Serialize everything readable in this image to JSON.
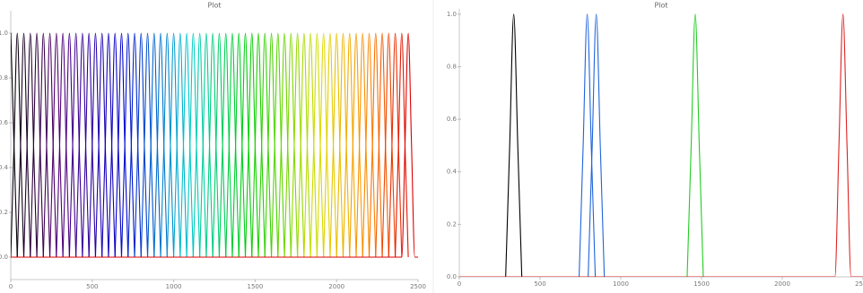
{
  "chart_data": [
    {
      "type": "line",
      "title": "Plot",
      "xlim": [
        0,
        2500
      ],
      "ylim": [
        -0.1,
        1.1
      ],
      "xticks": [
        0,
        500,
        1000,
        1500,
        2000,
        2500
      ],
      "yticks": [
        {
          "value": 0,
          "label": "0.0"
        },
        0.2,
        0.4,
        0.6,
        0.8,
        {
          "value": 1,
          "label": "1.0"
        }
      ],
      "series": [
        {
          "color": "#000000",
          "x": [
            0,
            20,
            40
          ],
          "values": [
            1,
            0.5,
            0
          ]
        },
        {
          "color": "#0b000f",
          "x": [
            0,
            20,
            40,
            60,
            80
          ],
          "values": [
            0,
            0.5,
            1,
            0.5,
            0
          ]
        },
        {
          "color": "#17001f",
          "x": [
            40,
            60,
            80,
            100,
            120
          ],
          "values": [
            0,
            0.5,
            1,
            0.5,
            0
          ]
        },
        {
          "color": "#22002f",
          "x": [
            80,
            100,
            120,
            140,
            160
          ],
          "values": [
            0,
            0.5,
            1,
            0.5,
            0
          ]
        },
        {
          "color": "#2e003f",
          "x": [
            120,
            140,
            160,
            180,
            200
          ],
          "values": [
            0,
            0.5,
            1,
            0.5,
            0
          ]
        },
        {
          "color": "#39004f",
          "x": [
            160,
            180,
            200,
            220,
            240
          ],
          "values": [
            0,
            0.5,
            1,
            0.5,
            0
          ]
        },
        {
          "color": "#45005f",
          "x": [
            200,
            220,
            240,
            260,
            280
          ],
          "values": [
            0,
            0.5,
            1,
            0.5,
            0
          ]
        },
        {
          "color": "#50006f",
          "x": [
            240,
            260,
            280,
            300,
            320
          ],
          "values": [
            0,
            0.5,
            1,
            0.5,
            0
          ]
        },
        {
          "color": "#4f007d",
          "x": [
            280,
            300,
            320,
            340,
            360
          ],
          "values": [
            0,
            0.5,
            1,
            0.5,
            0
          ]
        },
        {
          "color": "#460085",
          "x": [
            320,
            340,
            360,
            380,
            400
          ],
          "values": [
            0,
            0.5,
            1,
            0.5,
            0
          ]
        },
        {
          "color": "#3e008e",
          "x": [
            360,
            380,
            400,
            420,
            440
          ],
          "values": [
            0,
            0.5,
            1,
            0.5,
            0
          ]
        },
        {
          "color": "#350097",
          "x": [
            400,
            420,
            440,
            460,
            480
          ],
          "values": [
            0,
            0.5,
            1,
            0.5,
            0
          ]
        },
        {
          "color": "#2c00a0",
          "x": [
            440,
            460,
            480,
            500,
            520
          ],
          "values": [
            0,
            0.5,
            1,
            0.5,
            0
          ]
        },
        {
          "color": "#2400a8",
          "x": [
            480,
            500,
            520,
            540,
            560
          ],
          "values": [
            0,
            0.5,
            1,
            0.5,
            0
          ]
        },
        {
          "color": "#1a00b2",
          "x": [
            520,
            540,
            560,
            580,
            600
          ],
          "values": [
            0,
            0.5,
            1,
            0.5,
            0
          ]
        },
        {
          "color": "#1200ba",
          "x": [
            560,
            580,
            600,
            620,
            640
          ],
          "values": [
            0,
            0.5,
            1,
            0.5,
            0
          ]
        },
        {
          "color": "#0900c3",
          "x": [
            600,
            620,
            640,
            660,
            680
          ],
          "values": [
            0,
            0.5,
            1,
            0.5,
            0
          ]
        },
        {
          "color": "#0000cc",
          "x": [
            640,
            660,
            680,
            700,
            720
          ],
          "values": [
            0,
            0.5,
            1,
            0.5,
            0
          ]
        },
        {
          "color": "#0012cc",
          "x": [
            680,
            700,
            720,
            740,
            760
          ],
          "values": [
            0,
            0.5,
            1,
            0.5,
            0
          ]
        },
        {
          "color": "#0025cc",
          "x": [
            720,
            740,
            760,
            780,
            800
          ],
          "values": [
            0,
            0.5,
            1,
            0.5,
            0
          ]
        },
        {
          "color": "#0039cc",
          "x": [
            760,
            780,
            800,
            820,
            840
          ],
          "values": [
            0,
            0.5,
            1,
            0.5,
            0
          ]
        },
        {
          "color": "#004ecc",
          "x": [
            800,
            820,
            840,
            860,
            880
          ],
          "values": [
            0,
            0.5,
            1,
            0.5,
            0
          ]
        },
        {
          "color": "#0062cc",
          "x": [
            840,
            860,
            880,
            900,
            920
          ],
          "values": [
            0,
            0.5,
            1,
            0.5,
            0
          ]
        },
        {
          "color": "#0074cc",
          "x": [
            880,
            900,
            920,
            940,
            960
          ],
          "values": [
            0,
            0.5,
            1,
            0.5,
            0
          ]
        },
        {
          "color": "#0087cc",
          "x": [
            920,
            940,
            960,
            980,
            1000
          ],
          "values": [
            0,
            0.5,
            1,
            0.5,
            0
          ]
        },
        {
          "color": "#009bcc",
          "x": [
            960,
            980,
            1000,
            1020,
            1040
          ],
          "values": [
            0,
            0.5,
            1,
            0.5,
            0
          ]
        },
        {
          "color": "#00adcc",
          "x": [
            1000,
            1020,
            1040,
            1060,
            1080
          ],
          "values": [
            0,
            0.5,
            1,
            0.5,
            0
          ]
        },
        {
          "color": "#00c4cc",
          "x": [
            1040,
            1060,
            1080,
            1100,
            1120
          ],
          "values": [
            0,
            0.5,
            1,
            0.5,
            0
          ]
        },
        {
          "color": "#00ccc0",
          "x": [
            1080,
            1100,
            1120,
            1140,
            1160
          ],
          "values": [
            0,
            0.5,
            1,
            0.5,
            0
          ]
        },
        {
          "color": "#00cca9",
          "x": [
            1120,
            1140,
            1160,
            1180,
            1200
          ],
          "values": [
            0,
            0.5,
            1,
            0.5,
            0
          ]
        },
        {
          "color": "#00cc93",
          "x": [
            1160,
            1180,
            1200,
            1220,
            1240
          ],
          "values": [
            0,
            0.5,
            1,
            0.5,
            0
          ]
        },
        {
          "color": "#00cc7c",
          "x": [
            1200,
            1220,
            1240,
            1260,
            1280
          ],
          "values": [
            0,
            0.5,
            1,
            0.5,
            0
          ]
        },
        {
          "color": "#00cc66",
          "x": [
            1240,
            1260,
            1280,
            1300,
            1320
          ],
          "values": [
            0,
            0.5,
            1,
            0.5,
            0
          ]
        },
        {
          "color": "#00cc50",
          "x": [
            1280,
            1300,
            1320,
            1340,
            1360
          ],
          "values": [
            0,
            0.5,
            1,
            0.5,
            0
          ]
        },
        {
          "color": "#00cc39",
          "x": [
            1320,
            1340,
            1360,
            1380,
            1400
          ],
          "values": [
            0,
            0.5,
            1,
            0.5,
            0
          ]
        },
        {
          "color": "#00cc23",
          "x": [
            1360,
            1380,
            1400,
            1420,
            1440
          ],
          "values": [
            0,
            0.5,
            1,
            0.5,
            0
          ]
        },
        {
          "color": "#00cc0e",
          "x": [
            1400,
            1420,
            1440,
            1460,
            1480
          ],
          "values": [
            0,
            0.5,
            1,
            0.5,
            0
          ]
        },
        {
          "color": "#09cd00",
          "x": [
            1440,
            1460,
            1480,
            1500,
            1520
          ],
          "values": [
            0,
            0.5,
            1,
            0.5,
            0
          ]
        },
        {
          "color": "#1dce00",
          "x": [
            1480,
            1500,
            1520,
            1540,
            1560
          ],
          "values": [
            0,
            0.5,
            1,
            0.5,
            0
          ]
        },
        {
          "color": "#31d000",
          "x": [
            1520,
            1540,
            1560,
            1580,
            1600
          ],
          "values": [
            0,
            0.5,
            1,
            0.5,
            0
          ]
        },
        {
          "color": "#45d100",
          "x": [
            1560,
            1580,
            1600,
            1620,
            1640
          ],
          "values": [
            0,
            0.5,
            1,
            0.5,
            0
          ]
        },
        {
          "color": "#58d300",
          "x": [
            1600,
            1620,
            1640,
            1660,
            1680
          ],
          "values": [
            0,
            0.5,
            1,
            0.5,
            0
          ]
        },
        {
          "color": "#6cd400",
          "x": [
            1640,
            1660,
            1680,
            1700,
            1720
          ],
          "values": [
            0,
            0.5,
            1,
            0.5,
            0
          ]
        },
        {
          "color": "#80d600",
          "x": [
            1680,
            1700,
            1720,
            1740,
            1760
          ],
          "values": [
            0,
            0.5,
            1,
            0.5,
            0
          ]
        },
        {
          "color": "#94d700",
          "x": [
            1720,
            1740,
            1760,
            1780,
            1800
          ],
          "values": [
            0,
            0.5,
            1,
            0.5,
            0
          ]
        },
        {
          "color": "#aad900",
          "x": [
            1760,
            1780,
            1800,
            1820,
            1840
          ],
          "values": [
            0,
            0.5,
            1,
            0.5,
            0
          ]
        },
        {
          "color": "#bedb00",
          "x": [
            1800,
            1820,
            1840,
            1860,
            1880
          ],
          "values": [
            0,
            0.5,
            1,
            0.5,
            0
          ]
        },
        {
          "color": "#d0dc00",
          "x": [
            1840,
            1860,
            1880,
            1900,
            1920
          ],
          "values": [
            0,
            0.5,
            1,
            0.5,
            0
          ]
        },
        {
          "color": "#dfd800",
          "x": [
            1880,
            1900,
            1920,
            1940,
            1960
          ],
          "values": [
            0,
            0.5,
            1,
            0.5,
            0
          ]
        },
        {
          "color": "#e3cd00",
          "x": [
            1920,
            1940,
            1960,
            1980,
            2000
          ],
          "values": [
            0,
            0.5,
            1,
            0.5,
            0
          ]
        },
        {
          "color": "#e8c100",
          "x": [
            1960,
            1980,
            2000,
            2020,
            2040
          ],
          "values": [
            0,
            0.5,
            1,
            0.5,
            0
          ]
        },
        {
          "color": "#edb500",
          "x": [
            2000,
            2020,
            2040,
            2060,
            2080
          ],
          "values": [
            0,
            0.5,
            1,
            0.5,
            0
          ]
        },
        {
          "color": "#f1aa00",
          "x": [
            2040,
            2060,
            2080,
            2100,
            2120
          ],
          "values": [
            0,
            0.5,
            1,
            0.5,
            0
          ]
        },
        {
          "color": "#f69e00",
          "x": [
            2080,
            2100,
            2120,
            2140,
            2160
          ],
          "values": [
            0,
            0.5,
            1,
            0.5,
            0
          ]
        },
        {
          "color": "#fa9200",
          "x": [
            2120,
            2140,
            2160,
            2180,
            2200
          ],
          "values": [
            0,
            0.5,
            1,
            0.5,
            0
          ]
        },
        {
          "color": "#fe8500",
          "x": [
            2160,
            2180,
            2200,
            2220,
            2240
          ],
          "values": [
            0,
            0.5,
            1,
            0.5,
            0
          ]
        },
        {
          "color": "#f97000",
          "x": [
            2200,
            2220,
            2240,
            2260,
            2280
          ],
          "values": [
            0,
            0.5,
            1,
            0.5,
            0
          ]
        },
        {
          "color": "#f45a00",
          "x": [
            2240,
            2260,
            2280,
            2300,
            2320
          ],
          "values": [
            0,
            0.5,
            1,
            0.5,
            0
          ]
        },
        {
          "color": "#ee4300",
          "x": [
            2280,
            2300,
            2320,
            2340,
            2360
          ],
          "values": [
            0,
            0.5,
            1,
            0.5,
            0
          ]
        },
        {
          "color": "#e82d00",
          "x": [
            2320,
            2340,
            2360,
            2380,
            2400
          ],
          "values": [
            0,
            0.5,
            1,
            0.5,
            0
          ]
        },
        {
          "color": "#e21600",
          "x": [
            2360,
            2380,
            2400,
            2420,
            2440
          ],
          "values": [
            0,
            0.5,
            1,
            0.5,
            0
          ]
        },
        {
          "color": "#dd0000",
          "x": [
            0,
            2400,
            2420,
            2440,
            2460,
            2480,
            2500
          ],
          "values": [
            0,
            0,
            0.5,
            1,
            0.5,
            0,
            0
          ]
        }
      ]
    },
    {
      "type": "line",
      "title": "Plot",
      "xlim": [
        0,
        2500
      ],
      "ylim": [
        0,
        1.02
      ],
      "xticks": [
        0,
        500,
        1000,
        1500,
        2000,
        2500
      ],
      "yticks": [
        {
          "value": 0,
          "label": "0.0"
        },
        0.2,
        0.4,
        0.6,
        0.8,
        {
          "value": 1,
          "label": "1.0"
        }
      ],
      "series": [
        {
          "color": "#000000",
          "x": [
            287,
            312,
            337,
            362,
            387
          ],
          "values": [
            0,
            0.5,
            1,
            0.5,
            0
          ]
        },
        {
          "color": "#1e64dc",
          "x": [
            742,
            767,
            792,
            817,
            842
          ],
          "values": [
            0,
            0.5,
            1,
            0.5,
            0
          ]
        },
        {
          "color": "#1e64dc",
          "x": [
            798,
            823,
            848,
            873,
            898
          ],
          "values": [
            0,
            0.5,
            1,
            0.5,
            0
          ]
        },
        {
          "color": "#22cc22",
          "x": [
            1411,
            1436,
            1461,
            1486,
            1511
          ],
          "values": [
            0,
            0.5,
            1,
            0.5,
            0
          ]
        },
        {
          "color": "#dd2222",
          "x": [
            0,
            2326,
            2351,
            2376,
            2401,
            2426,
            2500
          ],
          "values": [
            0,
            0,
            0.5,
            1,
            0.5,
            0,
            0
          ]
        }
      ]
    }
  ]
}
